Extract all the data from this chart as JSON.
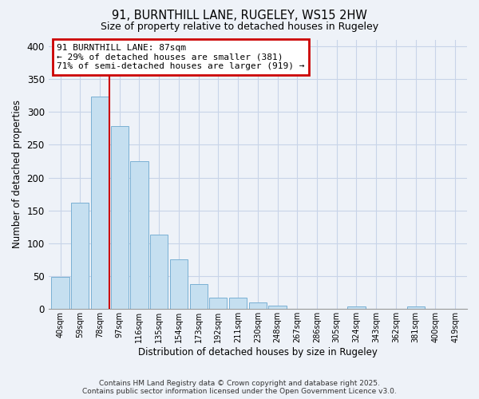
{
  "title": "91, BURNTHILL LANE, RUGELEY, WS15 2HW",
  "subtitle": "Size of property relative to detached houses in Rugeley",
  "xlabel": "Distribution of detached houses by size in Rugeley",
  "ylabel": "Number of detached properties",
  "bin_labels": [
    "40sqm",
    "59sqm",
    "78sqm",
    "97sqm",
    "116sqm",
    "135sqm",
    "154sqm",
    "173sqm",
    "192sqm",
    "211sqm",
    "230sqm",
    "248sqm",
    "267sqm",
    "286sqm",
    "305sqm",
    "324sqm",
    "343sqm",
    "362sqm",
    "381sqm",
    "400sqm",
    "419sqm"
  ],
  "bar_heights": [
    48,
    162,
    323,
    278,
    225,
    113,
    75,
    38,
    17,
    17,
    10,
    5,
    0,
    0,
    0,
    3,
    0,
    0,
    3,
    0,
    0
  ],
  "bar_color": "#c5dff0",
  "bar_edge_color": "#7ab0d4",
  "vline_x_index": 2.5,
  "vline_color": "#cc0000",
  "annotation_text_line1": "91 BURNTHILL LANE: 87sqm",
  "annotation_text_line2": "← 29% of detached houses are smaller (381)",
  "annotation_text_line3": "71% of semi-detached houses are larger (919) →",
  "annotation_box_color": "#cc0000",
  "ylim": [
    0,
    410
  ],
  "yticks": [
    0,
    50,
    100,
    150,
    200,
    250,
    300,
    350,
    400
  ],
  "grid_color": "#c8d4e8",
  "bg_color": "#eef2f8",
  "footer_line1": "Contains HM Land Registry data © Crown copyright and database right 2025.",
  "footer_line2": "Contains public sector information licensed under the Open Government Licence v3.0."
}
